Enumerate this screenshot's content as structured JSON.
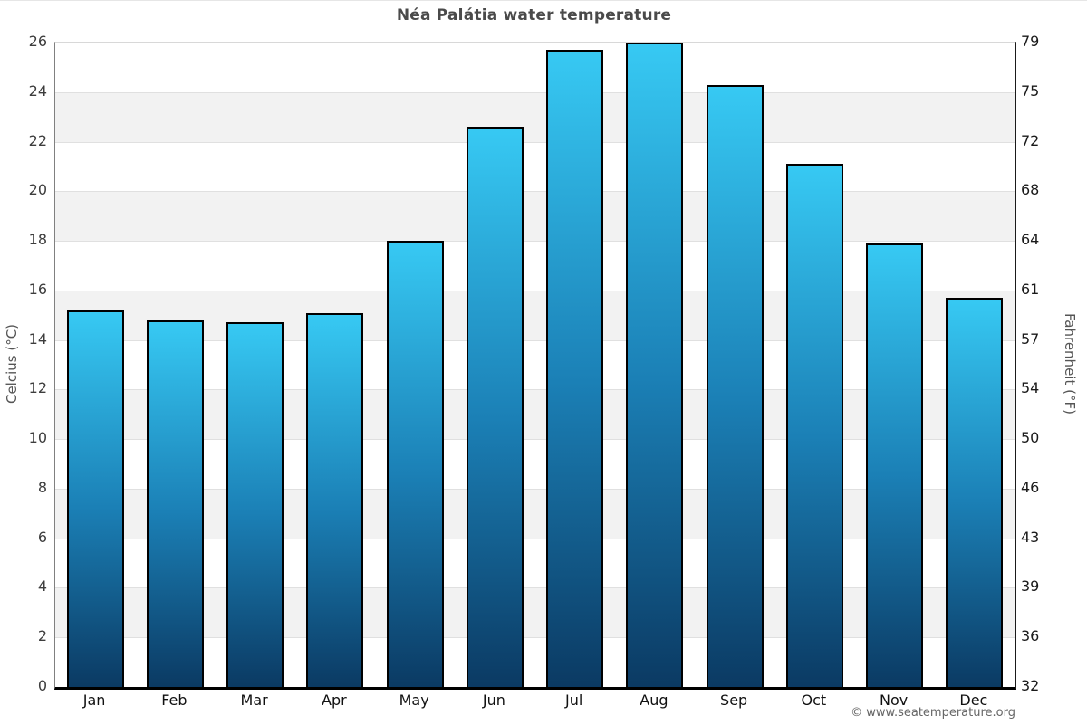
{
  "title": "Néa Palátia water temperature",
  "footer_credit": "© www.seatemperature.org",
  "axes": {
    "left_title": "Celcius (°C)",
    "right_title": "Fahrenheit (°F)"
  },
  "colors": {
    "bar_gradient_top": "#37c9f3",
    "bar_gradient_mid": "#1b80b6",
    "bar_gradient_bottom": "#0b3a63",
    "bar_border": "#000000",
    "band_fill": "#f2f2f2",
    "gridline": "#e0e0e0",
    "title_text": "#4a4a4a"
  },
  "chart_data": {
    "type": "bar",
    "title": "Néa Palátia water temperature",
    "categories": [
      "Jan",
      "Feb",
      "Mar",
      "Apr",
      "May",
      "Jun",
      "Jul",
      "Aug",
      "Sep",
      "Oct",
      "Nov",
      "Dec"
    ],
    "values": [
      15.2,
      14.8,
      14.7,
      15.1,
      18.0,
      22.6,
      25.7,
      26.0,
      24.3,
      21.1,
      17.9,
      15.7
    ],
    "unit": "°C",
    "xlabel": "",
    "ylabel": "Celcius (°C)",
    "ylabel_right": "Fahrenheit (°F)",
    "ylim": [
      0,
      26
    ],
    "celsius_ticks": [
      0,
      2,
      4,
      6,
      8,
      10,
      12,
      14,
      16,
      18,
      20,
      22,
      24,
      26
    ],
    "fahrenheit_tick_labels": [
      "32",
      "36",
      "39",
      "43",
      "46",
      "50",
      "54",
      "57",
      "61",
      "64",
      "68",
      "72",
      "75",
      "79"
    ],
    "gray_band_ranges": [
      [
        2,
        4
      ],
      [
        6,
        8
      ],
      [
        10,
        12
      ],
      [
        14,
        16
      ],
      [
        18,
        20
      ],
      [
        22,
        24
      ]
    ],
    "grid": "alternating-horizontal-bands",
    "legend": "none"
  }
}
